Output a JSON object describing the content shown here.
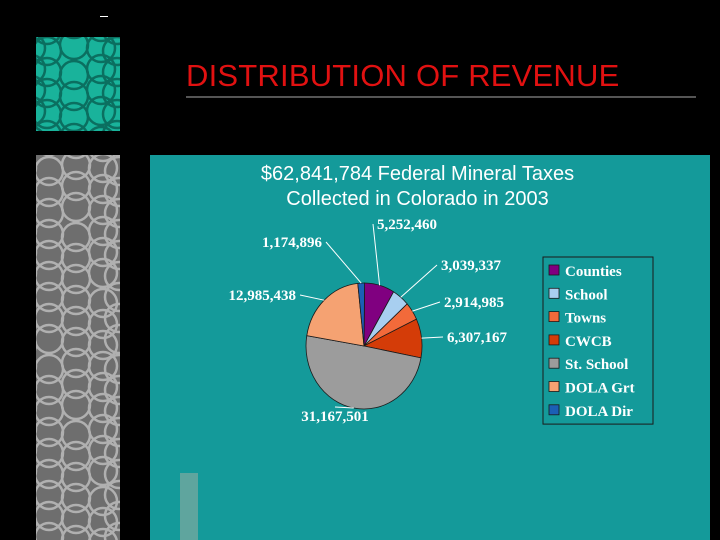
{
  "title": "DISTRIBUTION OF REVENUE",
  "chart_data": {
    "type": "pie",
    "title": "$62,841,784 Federal Mineral Taxes",
    "subtitle": "Collected in Colorado in 2003",
    "categories": [
      "Counties",
      "School",
      "Towns",
      "CWCB",
      "St. School",
      "DOLA Grt",
      "DOLA Dir"
    ],
    "values": [
      5252460,
      3039337,
      2914985,
      6307167,
      31167501,
      12985438,
      1174896
    ],
    "data_labels": [
      "5,252,460",
      "3,039,337",
      "2,914,985",
      "6,307,167",
      "31,167,501",
      "12,985,438",
      "1,174,896"
    ],
    "colors": [
      "#800080",
      "#a8cff0",
      "#f26a3a",
      "#d43c08",
      "#9c9c9c",
      "#f5a272",
      "#1b5fb5"
    ],
    "legend_position": "right"
  },
  "decor_colors": {
    "background": "#000000",
    "panel": "#149a9a",
    "title": "#e11111"
  }
}
